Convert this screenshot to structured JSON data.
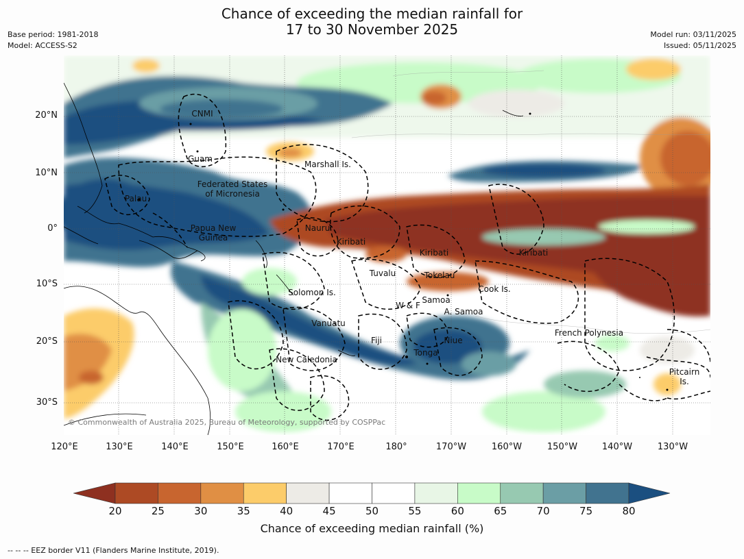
{
  "title_line1": "Chance of exceeding the median rainfall for",
  "title_line2": "17 to 30 November 2025",
  "meta_left": {
    "base_period": "Base period: 1981-2018",
    "model": "Model: ACCESS-S2"
  },
  "meta_right": {
    "model_run": "Model run: 03/11/2025",
    "issued": "Issued: 05/11/2025"
  },
  "lat_labels": [
    "20°N",
    "10°N",
    "0°",
    "10°S",
    "20°S",
    "30°S"
  ],
  "lon_labels": [
    "120°E",
    "130°E",
    "140°E",
    "150°E",
    "160°E",
    "170°E",
    "180°",
    "170°W",
    "160°W",
    "150°W",
    "140°W",
    "130°W"
  ],
  "regions": [
    {
      "name": "CNMI",
      "text": "CNMI"
    },
    {
      "name": "Guam",
      "text": "Guam"
    },
    {
      "name": "Marshall Is.",
      "text": "Marshall Is."
    },
    {
      "name": "Federated States of Micronesia",
      "text": "Federated States\nof Micronesia"
    },
    {
      "name": "Palau",
      "text": "Palau"
    },
    {
      "name": "Papua New Guinea",
      "text": "Papua New\nGuinea"
    },
    {
      "name": "Nauru",
      "text": "Nauru"
    },
    {
      "name": "Kiribati west",
      "text": "Kiribati"
    },
    {
      "name": "Kiribati central",
      "text": "Kiribati"
    },
    {
      "name": "Kiribati east",
      "text": "Kiribati"
    },
    {
      "name": "Tuvalu",
      "text": "Tuvalu"
    },
    {
      "name": "Tokelau",
      "text": "Tokelau"
    },
    {
      "name": "Cook Is.",
      "text": "Cook Is."
    },
    {
      "name": "Solomon Is.",
      "text": "Solomon Is."
    },
    {
      "name": "Samoa",
      "text": "Samoa"
    },
    {
      "name": "W & F",
      "text": "W & F"
    },
    {
      "name": "A. Samoa",
      "text": "A. Samoa"
    },
    {
      "name": "Vanuatu",
      "text": "Vanuatu"
    },
    {
      "name": "Fiji",
      "text": "Fiji"
    },
    {
      "name": "Niue",
      "text": "Niue"
    },
    {
      "name": "Tonga",
      "text": "Tonga"
    },
    {
      "name": "New Caledonia",
      "text": "New Caledonia"
    },
    {
      "name": "French Polynesia",
      "text": "French Polynesia"
    },
    {
      "name": "Pitcairn Is.",
      "text": "Pitcairn\nIs."
    }
  ],
  "copyright": "© Commonwealth of Australia 2025, Bureau of Meteorology, supported by COSPPac",
  "colorbar": {
    "ticks": [
      "20",
      "25",
      "30",
      "35",
      "40",
      "45",
      "50",
      "55",
      "60",
      "65",
      "70",
      "75",
      "80"
    ],
    "colors": [
      "#ad4a24",
      "#c8652f",
      "#e08f44",
      "#fccc6a",
      "#edebe6",
      "#ffffff",
      "#ffffff",
      "#e8f6e6",
      "#c8fbc8",
      "#97c9b1",
      "#6b9ea5",
      "#41738f"
    ],
    "low_extend_color": "#8e3020",
    "high_extend_color": "#1b4f80",
    "label": "Chance of exceeding median rainfall (%)"
  },
  "footer": "--  --  -- EEZ border V11 (Flanders Marine Institute, 2019)."
}
